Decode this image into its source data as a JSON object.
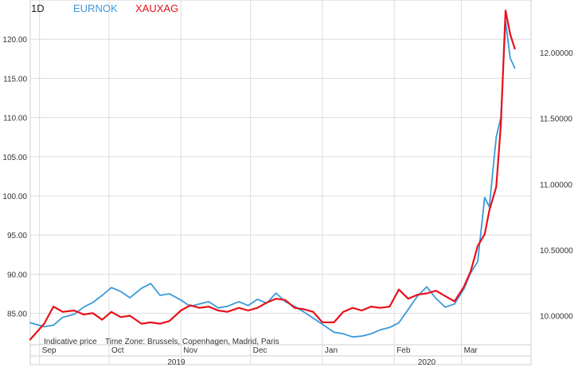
{
  "header": {
    "period": "1D",
    "note": "Indicative price",
    "timezone": "Time Zone: Brussels, Copenhagen, Madrid, Paris"
  },
  "colors": {
    "series_1": "#3a9ad9",
    "series_2": "#e8101a",
    "grid": "#dcdcdc",
    "axis_text": "#333333"
  },
  "chart_data": {
    "type": "line",
    "grid": true,
    "legend_placement": "top-left",
    "x_axis": {
      "month_labels": [
        "Sep",
        "Oct",
        "Nov",
        "Dec",
        "Jan",
        "Feb",
        "Mar"
      ],
      "month_ticks": [
        "2019-09-01",
        "2019-10-01",
        "2019-11-01",
        "2019-12-01",
        "2020-01-01",
        "2020-02-01",
        "2020-03-01"
      ],
      "year_labels": [
        "2019",
        "2020"
      ],
      "range": [
        "2019-08-28",
        "2020-03-31"
      ]
    },
    "y_left": {
      "ticks": [
        "85.00",
        "90.00",
        "95.00",
        "100.00",
        "105.00",
        "110.00",
        "115.00",
        "120.00"
      ],
      "range": [
        81.0,
        125.0
      ]
    },
    "y_right": {
      "ticks": [
        "10.00000",
        "10.50000",
        "11.00000",
        "11.50000",
        "12.00000"
      ],
      "range": [
        9.78,
        12.4
      ]
    },
    "series": [
      {
        "name": "EURNOK",
        "axis": "left",
        "points": [
          [
            "2019-08-28",
            83.8
          ],
          [
            "2019-09-03",
            83.3
          ],
          [
            "2019-09-07",
            83.5
          ],
          [
            "2019-09-11",
            84.5
          ],
          [
            "2019-09-16",
            84.9
          ],
          [
            "2019-09-20",
            85.8
          ],
          [
            "2019-09-24",
            86.4
          ],
          [
            "2019-09-28",
            87.3
          ],
          [
            "2019-10-02",
            88.3
          ],
          [
            "2019-10-06",
            87.8
          ],
          [
            "2019-10-10",
            87.0
          ],
          [
            "2019-10-15",
            88.2
          ],
          [
            "2019-10-19",
            88.8
          ],
          [
            "2019-10-23",
            87.3
          ],
          [
            "2019-10-27",
            87.5
          ],
          [
            "2019-11-01",
            86.7
          ],
          [
            "2019-11-05",
            85.9
          ],
          [
            "2019-11-09",
            86.2
          ],
          [
            "2019-11-13",
            86.5
          ],
          [
            "2019-11-17",
            85.7
          ],
          [
            "2019-11-21",
            85.9
          ],
          [
            "2019-11-26",
            86.5
          ],
          [
            "2019-11-30",
            86.0
          ],
          [
            "2019-12-04",
            86.8
          ],
          [
            "2019-12-08",
            86.3
          ],
          [
            "2019-12-12",
            87.6
          ],
          [
            "2019-12-16",
            86.5
          ],
          [
            "2019-12-20",
            85.9
          ],
          [
            "2019-12-24",
            85.2
          ],
          [
            "2019-12-28",
            84.4
          ],
          [
            "2020-01-01",
            83.6
          ],
          [
            "2020-01-06",
            82.6
          ],
          [
            "2020-01-10",
            82.4
          ],
          [
            "2020-01-14",
            82.0
          ],
          [
            "2020-01-18",
            82.1
          ],
          [
            "2020-01-22",
            82.4
          ],
          [
            "2020-01-26",
            82.9
          ],
          [
            "2020-01-30",
            83.2
          ],
          [
            "2020-02-03",
            83.8
          ],
          [
            "2020-02-07",
            85.5
          ],
          [
            "2020-02-11",
            87.2
          ],
          [
            "2020-02-15",
            88.4
          ],
          [
            "2020-02-19",
            86.9
          ],
          [
            "2020-02-23",
            85.8
          ],
          [
            "2020-02-27",
            86.2
          ],
          [
            "2020-03-02",
            88.1
          ],
          [
            "2020-03-05",
            90.2
          ],
          [
            "2020-03-08",
            91.6
          ],
          [
            "2020-03-11",
            99.8
          ],
          [
            "2020-03-13",
            98.6
          ],
          [
            "2020-03-16",
            107.5
          ],
          [
            "2020-03-18",
            110.0
          ],
          [
            "2020-03-20",
            122.3
          ],
          [
            "2020-03-22",
            117.6
          ],
          [
            "2020-03-24",
            116.3
          ]
        ]
      },
      {
        "name": "XAUXAG",
        "axis": "right",
        "points": [
          [
            "2019-08-28",
            9.82
          ],
          [
            "2019-09-03",
            9.94
          ],
          [
            "2019-09-07",
            10.07
          ],
          [
            "2019-09-11",
            10.03
          ],
          [
            "2019-09-16",
            10.04
          ],
          [
            "2019-09-20",
            10.01
          ],
          [
            "2019-09-24",
            10.02
          ],
          [
            "2019-09-28",
            9.97
          ],
          [
            "2019-10-02",
            10.03
          ],
          [
            "2019-10-06",
            9.99
          ],
          [
            "2019-10-10",
            10.0
          ],
          [
            "2019-10-15",
            9.94
          ],
          [
            "2019-10-19",
            9.95
          ],
          [
            "2019-10-23",
            9.94
          ],
          [
            "2019-10-27",
            9.96
          ],
          [
            "2019-11-01",
            10.04
          ],
          [
            "2019-11-05",
            10.08
          ],
          [
            "2019-11-09",
            10.06
          ],
          [
            "2019-11-13",
            10.07
          ],
          [
            "2019-11-17",
            10.04
          ],
          [
            "2019-11-21",
            10.03
          ],
          [
            "2019-11-26",
            10.06
          ],
          [
            "2019-11-30",
            10.04
          ],
          [
            "2019-12-04",
            10.06
          ],
          [
            "2019-12-08",
            10.1
          ],
          [
            "2019-12-12",
            10.13
          ],
          [
            "2019-12-16",
            10.12
          ],
          [
            "2019-12-20",
            10.06
          ],
          [
            "2019-12-24",
            10.05
          ],
          [
            "2019-12-28",
            10.03
          ],
          [
            "2020-01-01",
            9.95
          ],
          [
            "2020-01-06",
            9.95
          ],
          [
            "2020-01-10",
            10.03
          ],
          [
            "2020-01-14",
            10.06
          ],
          [
            "2020-01-18",
            10.04
          ],
          [
            "2020-01-22",
            10.07
          ],
          [
            "2020-01-26",
            10.06
          ],
          [
            "2020-01-30",
            10.07
          ],
          [
            "2020-02-03",
            10.2
          ],
          [
            "2020-02-07",
            10.13
          ],
          [
            "2020-02-11",
            10.16
          ],
          [
            "2020-02-15",
            10.17
          ],
          [
            "2020-02-19",
            10.19
          ],
          [
            "2020-02-23",
            10.15
          ],
          [
            "2020-02-27",
            10.11
          ],
          [
            "2020-03-02",
            10.22
          ],
          [
            "2020-03-05",
            10.34
          ],
          [
            "2020-03-08",
            10.53
          ],
          [
            "2020-03-11",
            10.62
          ],
          [
            "2020-03-13",
            10.8
          ],
          [
            "2020-03-16",
            10.98
          ],
          [
            "2020-03-18",
            11.45
          ],
          [
            "2020-03-20",
            12.32
          ],
          [
            "2020-03-22",
            12.14
          ],
          [
            "2020-03-24",
            12.03
          ]
        ]
      }
    ]
  }
}
